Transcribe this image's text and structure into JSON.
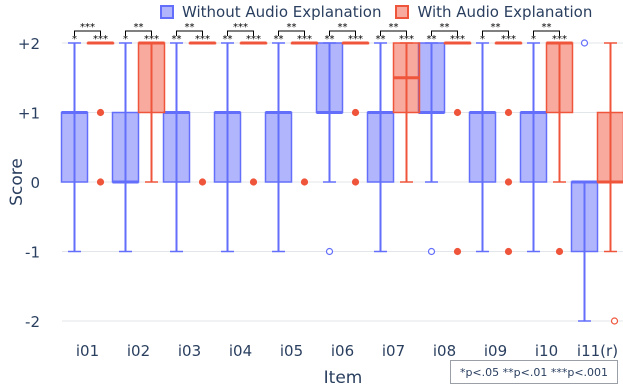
{
  "chart_data": {
    "type": "box",
    "title": "",
    "xlabel": "Item",
    "ylabel": "Score",
    "ylim": [
      -2.3,
      2.2
    ],
    "y_ticks": [
      2,
      1,
      0,
      -1,
      -2
    ],
    "y_tick_labels": [
      "+2",
      "+1",
      "0",
      "-1",
      "-2"
    ],
    "categories": [
      "i01",
      "i02",
      "i03",
      "i04",
      "i05",
      "i06",
      "i07",
      "i08",
      "i09",
      "i10",
      "i11(r)"
    ],
    "colors": {
      "without": "#636efa",
      "with": "#ef553b"
    },
    "series": [
      {
        "name": "Without Audio Explanation",
        "boxes": [
          {
            "min": -1,
            "q1": 0,
            "median": 1,
            "q3": 1,
            "max": 2,
            "outliers": []
          },
          {
            "min": -1,
            "q1": 0,
            "median": 0,
            "q3": 1,
            "max": 2,
            "outliers": []
          },
          {
            "min": -1,
            "q1": 0,
            "median": 1,
            "q3": 1,
            "max": 2,
            "outliers": []
          },
          {
            "min": -1,
            "q1": 0,
            "median": 1,
            "q3": 1,
            "max": 2,
            "outliers": []
          },
          {
            "min": -1,
            "q1": 0,
            "median": 1,
            "q3": 1,
            "max": 2,
            "outliers": []
          },
          {
            "min": 0,
            "q1": 1,
            "median": 1,
            "q3": 2,
            "max": 2,
            "outliers": [
              -1
            ]
          },
          {
            "min": -1,
            "q1": 0,
            "median": 1,
            "q3": 1,
            "max": 2,
            "outliers": []
          },
          {
            "min": 0,
            "q1": 1,
            "median": 1,
            "q3": 2,
            "max": 2,
            "outliers": [
              -1
            ]
          },
          {
            "min": -1,
            "q1": 0,
            "median": 1,
            "q3": 1,
            "max": 2,
            "outliers": []
          },
          {
            "min": -1,
            "q1": 0,
            "median": 1,
            "q3": 1,
            "max": 2,
            "outliers": []
          },
          {
            "min": -2,
            "q1": -1,
            "median": 0,
            "q3": 0,
            "max": 0,
            "outliers": [
              2
            ]
          }
        ]
      },
      {
        "name": "With Audio Explanation",
        "boxes": [
          {
            "min": 2,
            "q1": 2,
            "median": 2,
            "q3": 2,
            "max": 2,
            "outliers": [
              1,
              0
            ]
          },
          {
            "min": 0,
            "q1": 1,
            "median": 2,
            "q3": 2,
            "max": 2,
            "outliers": []
          },
          {
            "min": 2,
            "q1": 2,
            "median": 2,
            "q3": 2,
            "max": 2,
            "outliers": [
              0
            ]
          },
          {
            "min": 2,
            "q1": 2,
            "median": 2,
            "q3": 2,
            "max": 2,
            "outliers": [
              0
            ]
          },
          {
            "min": 2,
            "q1": 2,
            "median": 2,
            "q3": 2,
            "max": 2,
            "outliers": [
              0
            ]
          },
          {
            "min": 2,
            "q1": 2,
            "median": 2,
            "q3": 2,
            "max": 2,
            "outliers": [
              1,
              0
            ]
          },
          {
            "min": 0,
            "q1": 1,
            "median": 1.5,
            "q3": 2,
            "max": 2,
            "outliers": []
          },
          {
            "min": 2,
            "q1": 2,
            "median": 2,
            "q3": 2,
            "max": 2,
            "outliers": [
              1,
              -1
            ]
          },
          {
            "min": 2,
            "q1": 2,
            "median": 2,
            "q3": 2,
            "max": 2,
            "outliers": [
              1,
              0,
              -1
            ]
          },
          {
            "min": 0,
            "q1": 1,
            "median": 2,
            "q3": 2,
            "max": 2,
            "outliers": [
              -1
            ]
          },
          {
            "min": -1,
            "q1": 0,
            "median": 0,
            "q3": 1,
            "max": 2,
            "outliers": [
              -2
            ]
          }
        ]
      }
    ],
    "significance": [
      {
        "top": "***",
        "left": "*",
        "right": "***"
      },
      {
        "top": "**",
        "left": "*",
        "right": "***"
      },
      {
        "top": "**",
        "left": "**",
        "right": "***"
      },
      {
        "top": "***",
        "left": "**",
        "right": "***"
      },
      {
        "top": "**",
        "left": "**",
        "right": "***"
      },
      {
        "top": "**",
        "left": "**",
        "right": "***"
      },
      {
        "top": "**",
        "left": "**",
        "right": "***"
      },
      {
        "top": "**",
        "left": "**",
        "right": "***"
      },
      {
        "top": "**",
        "left": "*",
        "right": "***"
      },
      {
        "top": "**",
        "left": "*",
        "right": "***"
      },
      null
    ],
    "legend": {
      "position": "top"
    },
    "significance_note": "*p<.05  **p<.01  ***p<.001"
  }
}
